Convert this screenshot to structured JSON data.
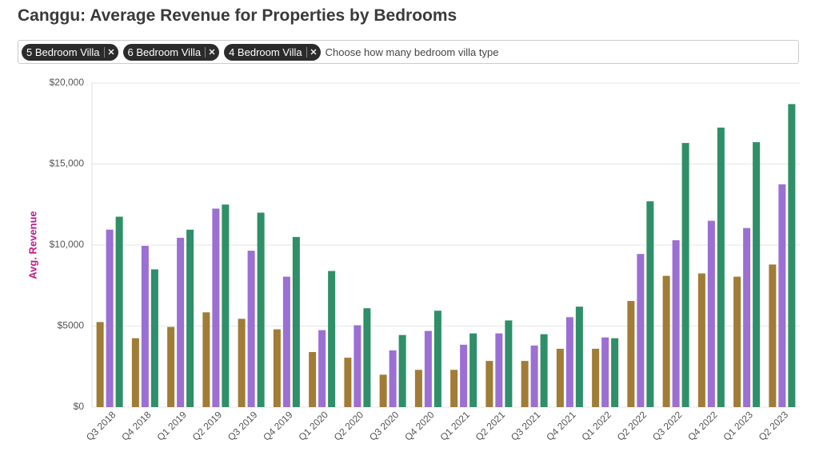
{
  "header": {
    "title": "Canggu: Average Revenue for Properties by Bedrooms"
  },
  "filter": {
    "chips": [
      "5 Bedroom Villa",
      "6 Bedroom Villa",
      "4 Bedroom Villa"
    ],
    "placeholder": "Choose how many bedroom villa type"
  },
  "chart_data": {
    "type": "bar",
    "y_label": "Avg. Revenue",
    "categories": [
      "Q3 2018",
      "Q4 2018",
      "Q1 2019",
      "Q2 2019",
      "Q3 2019",
      "Q4 2019",
      "Q1 2020",
      "Q2 2020",
      "Q3 2020",
      "Q4 2020",
      "Q1 2021",
      "Q2 2021",
      "Q3 2021",
      "Q4 2021",
      "Q1 2022",
      "Q2 2022",
      "Q3 2022",
      "Q4 2022",
      "Q1 2023",
      "Q2 2023"
    ],
    "series": [
      {
        "color": "#a07c36",
        "values": [
          5250,
          4250,
          4950,
          5850,
          5450,
          4800,
          3400,
          3050,
          2000,
          2300,
          2300,
          2850,
          2850,
          3600,
          3600,
          6550,
          8100,
          8250,
          8050,
          8800
        ]
      },
      {
        "color": "#9b6fd3",
        "values": [
          10950,
          9950,
          10450,
          12250,
          9650,
          8050,
          4750,
          5050,
          3500,
          4700,
          3850,
          4550,
          3800,
          5550,
          4300,
          9450,
          10300,
          11500,
          11050,
          13750
        ]
      },
      {
        "color": "#2e8f68",
        "values": [
          11750,
          8500,
          10950,
          12500,
          12000,
          10500,
          8400,
          6100,
          4450,
          5950,
          4550,
          5350,
          4500,
          6200,
          4250,
          12700,
          16300,
          17250,
          16350,
          18700
        ]
      }
    ],
    "ylim": [
      0,
      20000
    ],
    "yticks": [
      {
        "value": 0,
        "label": "$0"
      },
      {
        "value": 5000,
        "label": "$5000"
      },
      {
        "value": 10000,
        "label": "$10,000"
      },
      {
        "value": 15000,
        "label": "$15,000"
      },
      {
        "value": 20000,
        "label": "$20,000"
      }
    ],
    "grid": true
  }
}
